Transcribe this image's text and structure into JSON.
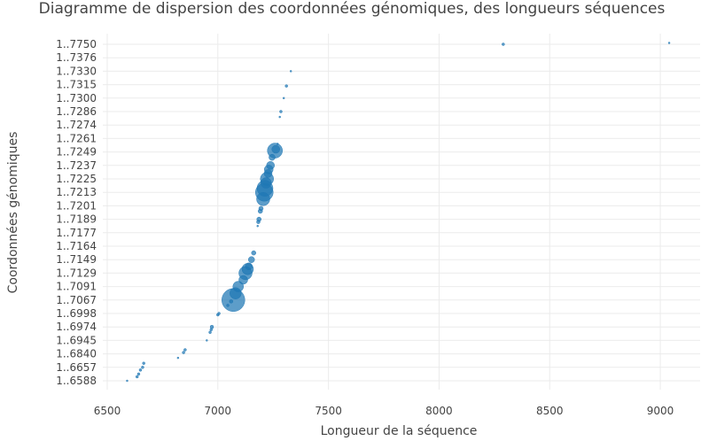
{
  "chart_data": {
    "type": "scatter",
    "title": "Diagramme de dispersion des coordonnées génomiques, des longueurs séquences",
    "xlabel": "Longueur de la séquence",
    "ylabel": "Coordonnées génomiques",
    "xlim": [
      6480,
      9180
    ],
    "x_ticks": [
      6500,
      7000,
      7500,
      8000,
      8500,
      9000
    ],
    "y_categories": [
      "1..6588",
      "1..6657",
      "1..6840",
      "1..6945",
      "1..6974",
      "1..6998",
      "1..7067",
      "1..7091",
      "1..7129",
      "1..7149",
      "1..7164",
      "1..7177",
      "1..7189",
      "1..7201",
      "1..7213",
      "1..7225",
      "1..7237",
      "1..7249",
      "1..7261",
      "1..7274",
      "1..7286",
      "1..7300",
      "1..7315",
      "1..7330",
      "1..7376",
      "1..7750"
    ],
    "grid": true,
    "marker_color": "#1f77b4",
    "points": [
      {
        "x": 6590,
        "y": 0.0,
        "size": 2
      },
      {
        "x": 6635,
        "y": 0.3,
        "size": 3
      },
      {
        "x": 6642,
        "y": 0.5,
        "size": 3
      },
      {
        "x": 6650,
        "y": 0.8,
        "size": 3
      },
      {
        "x": 6660,
        "y": 1.0,
        "size": 3
      },
      {
        "x": 6665,
        "y": 1.3,
        "size": 3
      },
      {
        "x": 6820,
        "y": 1.7,
        "size": 2
      },
      {
        "x": 6845,
        "y": 2.1,
        "size": 3
      },
      {
        "x": 6852,
        "y": 2.3,
        "size": 3
      },
      {
        "x": 6950,
        "y": 3.0,
        "size": 2
      },
      {
        "x": 6965,
        "y": 3.6,
        "size": 3
      },
      {
        "x": 6970,
        "y": 3.8,
        "size": 3
      },
      {
        "x": 6973,
        "y": 4.0,
        "size": 4
      },
      {
        "x": 7000,
        "y": 4.9,
        "size": 3
      },
      {
        "x": 7005,
        "y": 5.0,
        "size": 3
      },
      {
        "x": 7045,
        "y": 5.6,
        "size": 3
      },
      {
        "x": 7060,
        "y": 5.9,
        "size": 4
      },
      {
        "x": 7070,
        "y": 6.0,
        "size": 26
      },
      {
        "x": 7080,
        "y": 6.5,
        "size": 13
      },
      {
        "x": 7092,
        "y": 7.0,
        "size": 12
      },
      {
        "x": 7115,
        "y": 7.5,
        "size": 10
      },
      {
        "x": 7125,
        "y": 8.0,
        "size": 15
      },
      {
        "x": 7135,
        "y": 8.3,
        "size": 13
      },
      {
        "x": 7140,
        "y": 8.5,
        "size": 8
      },
      {
        "x": 7152,
        "y": 9.0,
        "size": 7
      },
      {
        "x": 7162,
        "y": 9.5,
        "size": 5
      },
      {
        "x": 7180,
        "y": 11.5,
        "size": 2
      },
      {
        "x": 7183,
        "y": 11.8,
        "size": 4
      },
      {
        "x": 7186,
        "y": 12.0,
        "size": 5
      },
      {
        "x": 7192,
        "y": 12.6,
        "size": 5
      },
      {
        "x": 7195,
        "y": 12.8,
        "size": 5
      },
      {
        "x": 7205,
        "y": 13.5,
        "size": 15
      },
      {
        "x": 7210,
        "y": 14.0,
        "size": 20
      },
      {
        "x": 7213,
        "y": 14.3,
        "size": 18
      },
      {
        "x": 7218,
        "y": 14.7,
        "size": 12
      },
      {
        "x": 7222,
        "y": 15.0,
        "size": 15
      },
      {
        "x": 7227,
        "y": 15.4,
        "size": 9
      },
      {
        "x": 7230,
        "y": 15.7,
        "size": 10
      },
      {
        "x": 7238,
        "y": 16.0,
        "size": 9
      },
      {
        "x": 7245,
        "y": 16.6,
        "size": 7
      },
      {
        "x": 7258,
        "y": 17.1,
        "size": 17
      },
      {
        "x": 7262,
        "y": 17.2,
        "size": 9
      },
      {
        "x": 7270,
        "y": 17.6,
        "size": 2
      },
      {
        "x": 7280,
        "y": 19.6,
        "size": 2
      },
      {
        "x": 7285,
        "y": 20.0,
        "size": 3
      },
      {
        "x": 7298,
        "y": 21.0,
        "size": 2
      },
      {
        "x": 7310,
        "y": 21.9,
        "size": 3
      },
      {
        "x": 7330,
        "y": 23.0,
        "size": 2
      },
      {
        "x": 8290,
        "y": 25.0,
        "size": 3
      },
      {
        "x": 9040,
        "y": 25.1,
        "size": 2
      }
    ]
  }
}
